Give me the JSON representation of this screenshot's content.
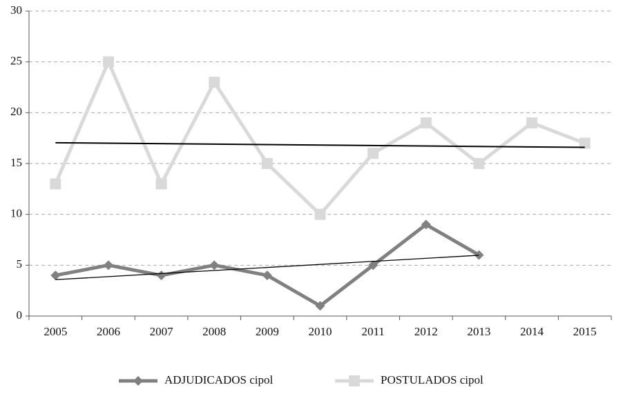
{
  "chart_data": {
    "type": "line",
    "categories": [
      "2005",
      "2006",
      "2007",
      "2008",
      "2009",
      "2010",
      "2011",
      "2012",
      "2013",
      "2014",
      "2015"
    ],
    "series": [
      {
        "name": "ADJUDICADOS cipol",
        "color": "#808080",
        "marker": "diamond",
        "trendline": true,
        "values": [
          4,
          5,
          4,
          5,
          4,
          1,
          5,
          9,
          6,
          null,
          null
        ]
      },
      {
        "name": "POSTULADOS cipol",
        "color": "#d9d9d9",
        "marker": "square",
        "trendline": true,
        "values": [
          13,
          25,
          13,
          23,
          15,
          10,
          16,
          19,
          15,
          19,
          17
        ]
      }
    ],
    "ylim": [
      0,
      30
    ],
    "yticks": [
      0,
      5,
      10,
      15,
      20,
      25,
      30
    ],
    "grid": true,
    "legend": "bottom"
  }
}
